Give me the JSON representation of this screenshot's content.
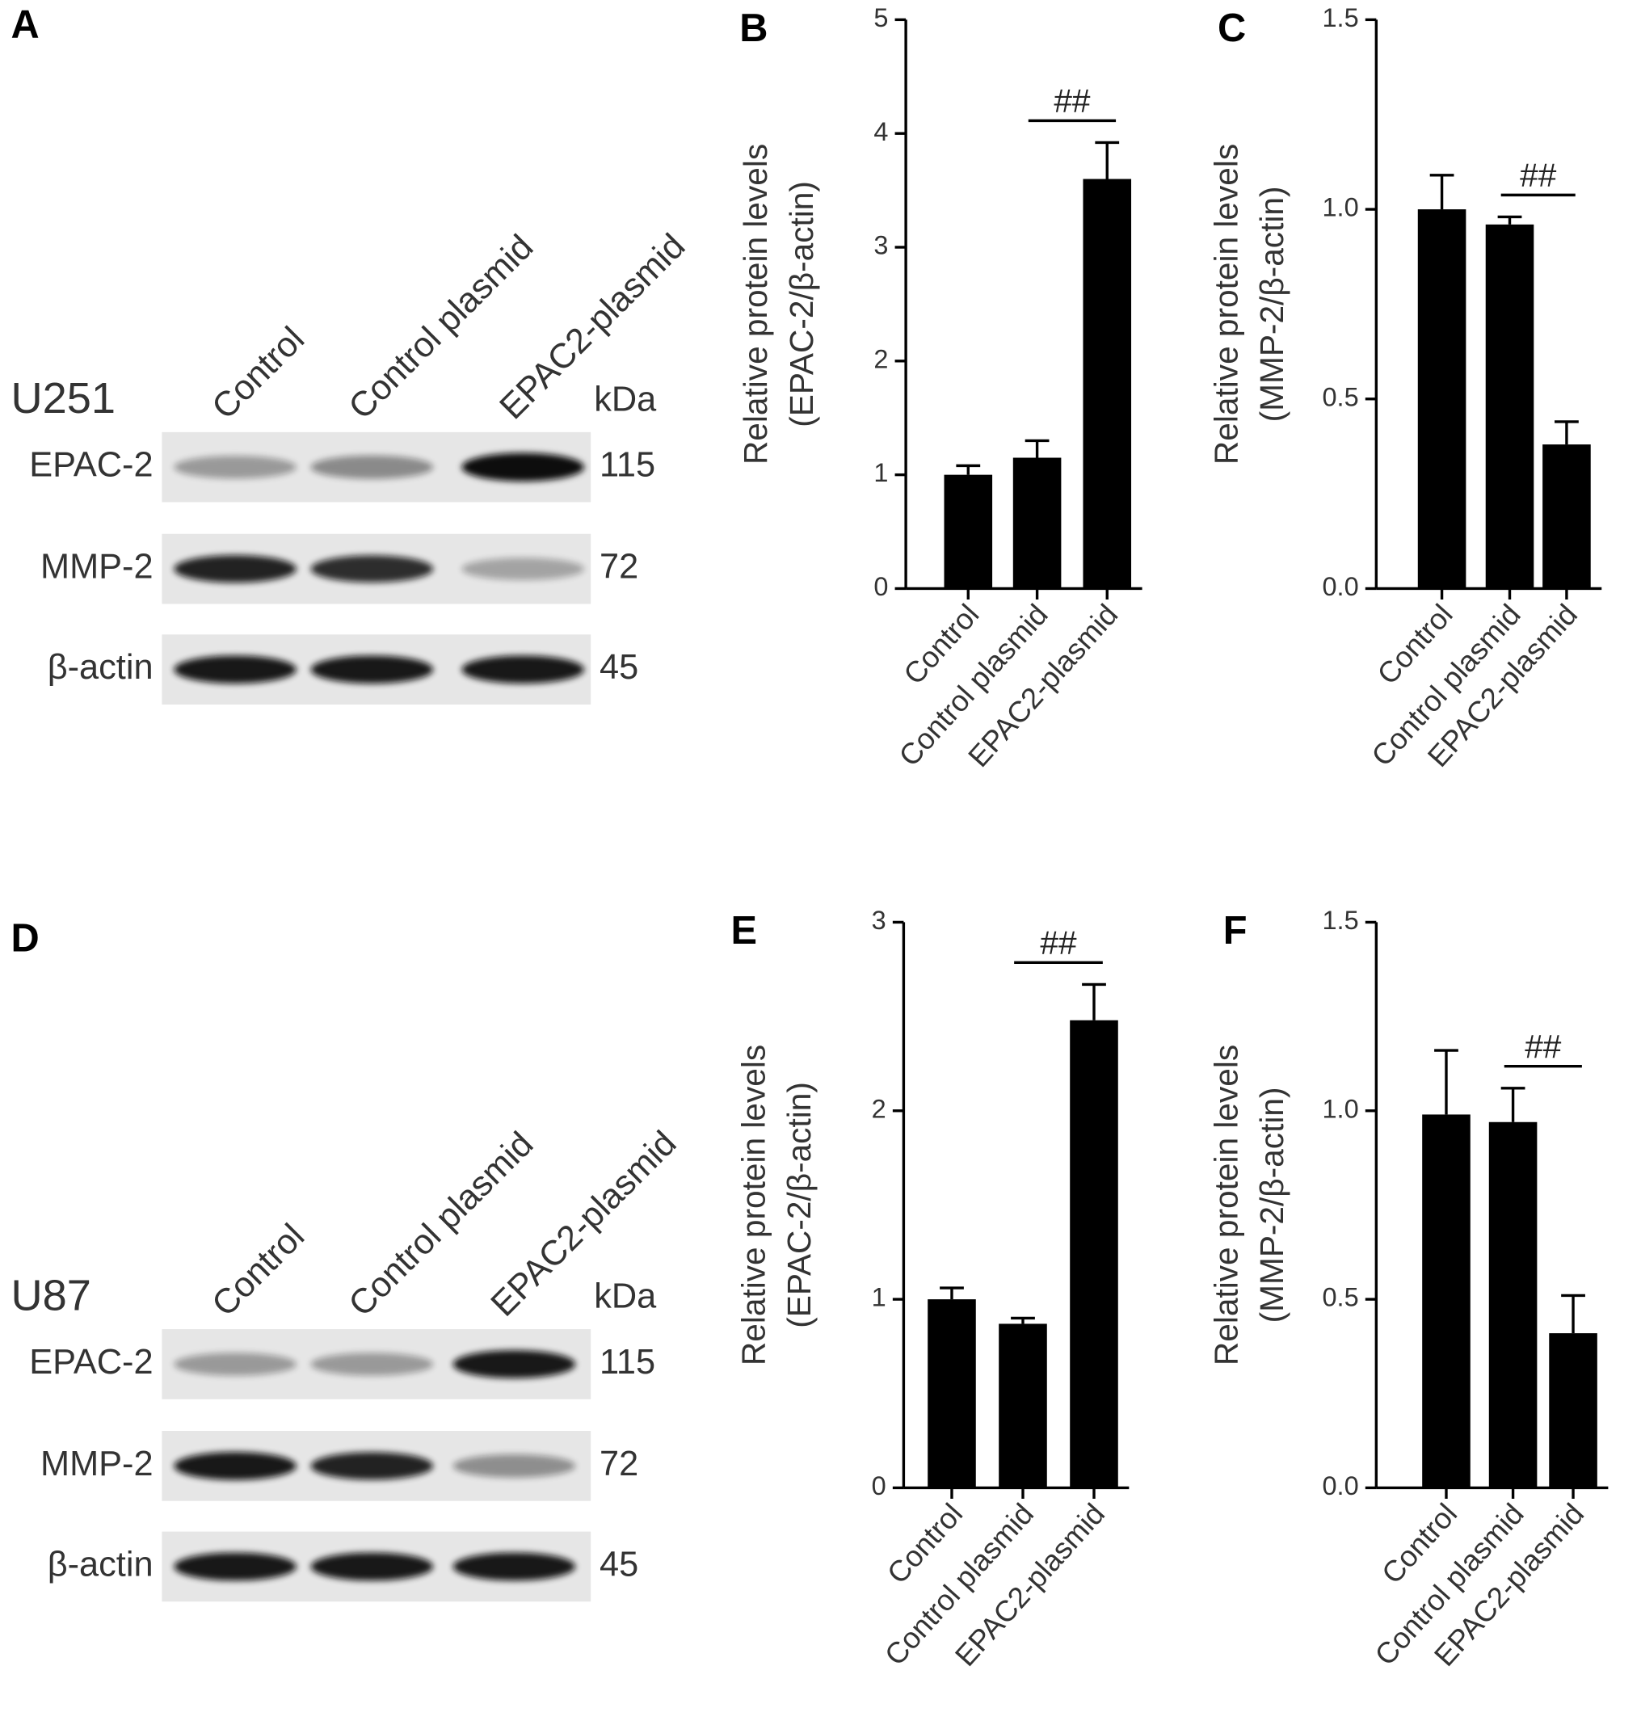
{
  "blots": [
    {
      "panel": "A",
      "cell_line": "U251",
      "kda_label": "kDa",
      "lanes": [
        "Control",
        "Control plasmid",
        "EPAC2-plasmid"
      ],
      "rows": [
        {
          "protein": "EPAC-2",
          "kda": 115
        },
        {
          "protein": "MMP-2",
          "kda": 72
        },
        {
          "protein": "β-actin",
          "kda": 45
        }
      ]
    },
    {
      "panel": "D",
      "cell_line": "U87",
      "kda_label": "kDa",
      "lanes": [
        "Control",
        "Control plasmid",
        "EPAC2-plasmid"
      ],
      "rows": [
        {
          "protein": "EPAC-2",
          "kda": 115
        },
        {
          "protein": "MMP-2",
          "kda": 72
        },
        {
          "protein": "β-actin",
          "kda": 45
        }
      ]
    }
  ],
  "chart_data": [
    {
      "type": "bar",
      "panel_label": "B",
      "ylabel": [
        "Relative protein levels",
        "(EPAC-2/β-actin)"
      ],
      "categories": [
        "Control",
        "Control plasmid",
        "EPAC2-plasmid"
      ],
      "values": [
        1.0,
        1.15,
        3.6
      ],
      "errors": [
        0.08,
        0.15,
        0.32
      ],
      "color": "#000000",
      "ylim": [
        0,
        5
      ],
      "yticks": [
        0,
        1,
        2,
        3,
        4,
        5
      ],
      "annotation": "##"
    },
    {
      "type": "bar",
      "panel_label": "C",
      "ylabel": [
        "Relative protein levels",
        "(MMP-2/β-actin)"
      ],
      "categories": [
        "Control",
        "Control plasmid",
        "EPAC2-plasmid"
      ],
      "values": [
        1.0,
        0.96,
        0.38
      ],
      "errors": [
        0.09,
        0.02,
        0.06
      ],
      "color": "#000000",
      "ylim": [
        0,
        1.5
      ],
      "yticks": [
        {
          "value": 0,
          "label": "0.0"
        },
        0.5,
        {
          "value": 1,
          "label": "1.0"
        },
        1.5
      ],
      "annotation": "##"
    },
    {
      "type": "bar",
      "panel_label": "E",
      "ylabel": [
        "Relative protein levels",
        "(EPAC-2/β-actin)"
      ],
      "categories": [
        "Control",
        "Control plasmid",
        "EPAC2-plasmid"
      ],
      "values": [
        1.0,
        0.87,
        2.48
      ],
      "errors": [
        0.06,
        0.03,
        0.19
      ],
      "color": "#000000",
      "ylim": [
        0,
        3
      ],
      "yticks": [
        0,
        1,
        2,
        3
      ],
      "annotation": "##"
    },
    {
      "type": "bar",
      "panel_label": "F",
      "ylabel": [
        "Relative protein levels",
        "(MMP-2/β-actin)"
      ],
      "categories": [
        "Control",
        "Control plasmid",
        "EPAC2-plasmid"
      ],
      "values": [
        0.99,
        0.97,
        0.41
      ],
      "errors": [
        0.17,
        0.09,
        0.1
      ],
      "color": "#000000",
      "ylim": [
        0,
        1.5
      ],
      "yticks": [
        {
          "value": 0,
          "label": "0.0"
        },
        0.5,
        {
          "value": 1,
          "label": "1.0"
        },
        1.5
      ],
      "annotation": "##"
    }
  ]
}
